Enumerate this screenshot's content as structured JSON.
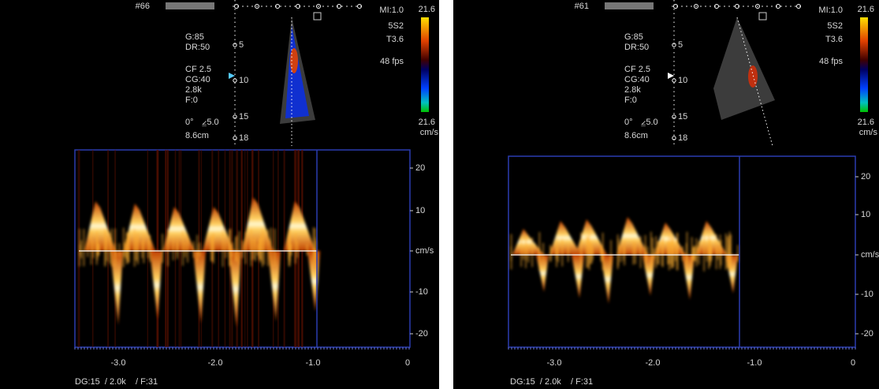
{
  "panels": [
    {
      "frame_id": "#66",
      "settings": [
        "G:85",
        "DR:50",
        "CF 2.5",
        "CG:40",
        "2.8k",
        "F:0",
        "0°",
        "⦤5.0",
        "8.6cm"
      ],
      "depth_marks": [
        "5",
        "10",
        "15",
        "18"
      ],
      "readouts": [
        "MI:1.0",
        "5S2",
        "T3.6",
        "48 fps"
      ],
      "color_scale": {
        "top": "21.6",
        "bottom": "21.6",
        "unit": "cm/s"
      },
      "spectral": {
        "y_labels": [
          "20",
          "10",
          "cm/s",
          "-10",
          "-20"
        ],
        "x_labels": [
          "-3.0",
          "-2.0",
          "-1.0",
          "0"
        ]
      },
      "footer": "DG:15  / 2.0k    / F:31"
    },
    {
      "frame_id": "#61",
      "settings": [
        "G:85",
        "DR:50",
        "CF 2.5",
        "CG:40",
        "2.8k",
        "F:0",
        "0°",
        "⦤5.0",
        "8.6cm"
      ],
      "depth_marks": [
        "5",
        "10",
        "15",
        "18"
      ],
      "readouts": [
        "MI:1.0",
        "5S2",
        "T3.6",
        "48 fps"
      ],
      "color_scale": {
        "top": "21.6",
        "bottom": "21.6",
        "unit": "cm/s"
      },
      "spectral": {
        "y_labels": [
          "20",
          "10",
          "cm/s",
          "-10",
          "-20"
        ],
        "x_labels": [
          "-3.0",
          "-2.0",
          "-1.0",
          "0"
        ]
      },
      "footer": "DG:15  / 2.0k    / F:31"
    }
  ]
}
